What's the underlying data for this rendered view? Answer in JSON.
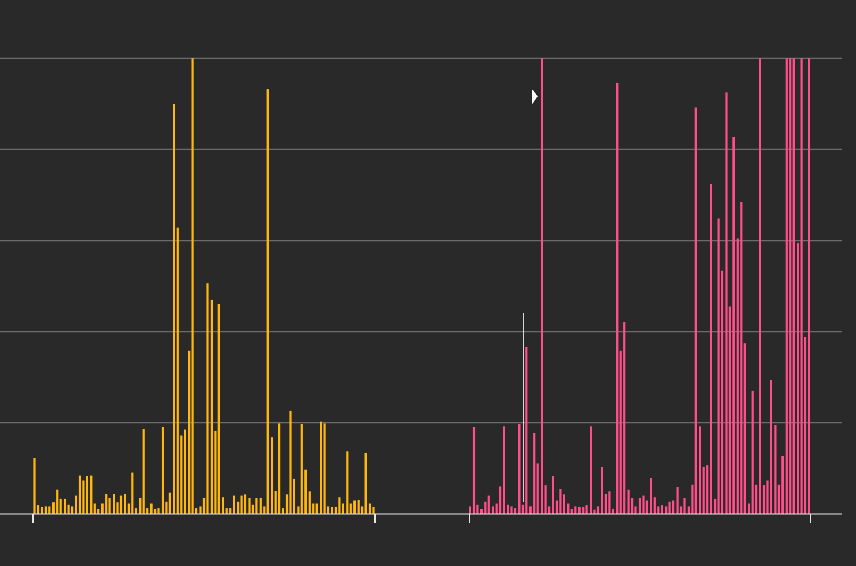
{
  "chart_data": {
    "type": "bar",
    "title": "",
    "xlabel": "",
    "ylabel": "",
    "ylim": [
      0,
      5.07
    ],
    "gridlines": [
      1,
      2,
      3,
      4,
      5
    ],
    "grid": true,
    "background_color": "#292929",
    "grid_color": "#6b6b6b",
    "axis_color": "#e6e6e6",
    "series": [
      {
        "color": "#ffb70f",
        "values": [
          0.61,
          0.09,
          0.07,
          0.08,
          0.08,
          0.12,
          0.26,
          0.16,
          0.16,
          0.1,
          0.08,
          0.2,
          0.42,
          0.36,
          0.41,
          0.42,
          0.11,
          0.05,
          0.11,
          0.22,
          0.17,
          0.22,
          0.12,
          0.2,
          0.22,
          0.11,
          0.45,
          0.06,
          0.17,
          0.93,
          0.06,
          0.11,
          0.05,
          0.06,
          0.95,
          0.13,
          0.23,
          4.5,
          3.14,
          0.86,
          0.92,
          1.79,
          5.0,
          0.06,
          0.08,
          0.17,
          2.53,
          2.35,
          0.91,
          2.3,
          0.18,
          0.06,
          0.06,
          0.2,
          0.13,
          0.2,
          0.21,
          0.17,
          0.1,
          0.17,
          0.17,
          0.08,
          4.66,
          0.84,
          0.25,
          0.99,
          0.06,
          0.21,
          1.13,
          0.38,
          0.08,
          0.98,
          0.48,
          0.24,
          0.11,
          0.11,
          1.01,
          0.99,
          0.08,
          0.07,
          0.07,
          0.18,
          0.11,
          0.68,
          0.11,
          0.14,
          0.15,
          0.08,
          0.66,
          0.11,
          0.07
        ]
      },
      {
        "color": "#ff4f8b",
        "values": [
          0.08,
          0.95,
          0.1,
          0.05,
          0.13,
          0.2,
          0.08,
          0.11,
          0.3,
          0.96,
          0.1,
          0.08,
          0.06,
          0.98,
          0.1,
          1.83,
          0.08,
          0.88,
          0.55,
          5.0,
          0.31,
          0.08,
          0.41,
          0.14,
          0.27,
          0.21,
          0.11,
          0.05,
          0.08,
          0.07,
          0.07,
          0.09,
          0.96,
          0.04,
          0.08,
          0.51,
          0.22,
          0.24,
          0.05,
          4.73,
          1.79,
          2.1,
          0.26,
          0.17,
          0.08,
          0.17,
          0.2,
          0.14,
          0.39,
          0.18,
          0.08,
          0.09,
          0.08,
          0.13,
          0.14,
          0.29,
          0.08,
          0.17,
          0.08,
          0.32,
          4.46,
          0.96,
          0.51,
          0.53,
          3.62,
          0.16,
          3.24,
          2.67,
          4.62,
          2.27,
          4.13,
          3.02,
          3.42,
          1.87,
          0.11,
          1.35,
          0.32,
          5.0,
          0.31,
          0.36,
          1.47,
          0.97,
          0.32,
          0.63,
          5.0,
          5.0,
          5.0,
          2.97,
          5.0,
          1.94,
          5.0
        ]
      }
    ],
    "markers": {
      "indicator_line": {
        "series": 1,
        "index": 14,
        "value": 2.2,
        "color": "#ffffff"
      },
      "pointer": {
        "shape": "triangle-right",
        "color": "#ffffff",
        "value": 4.58
      }
    }
  }
}
